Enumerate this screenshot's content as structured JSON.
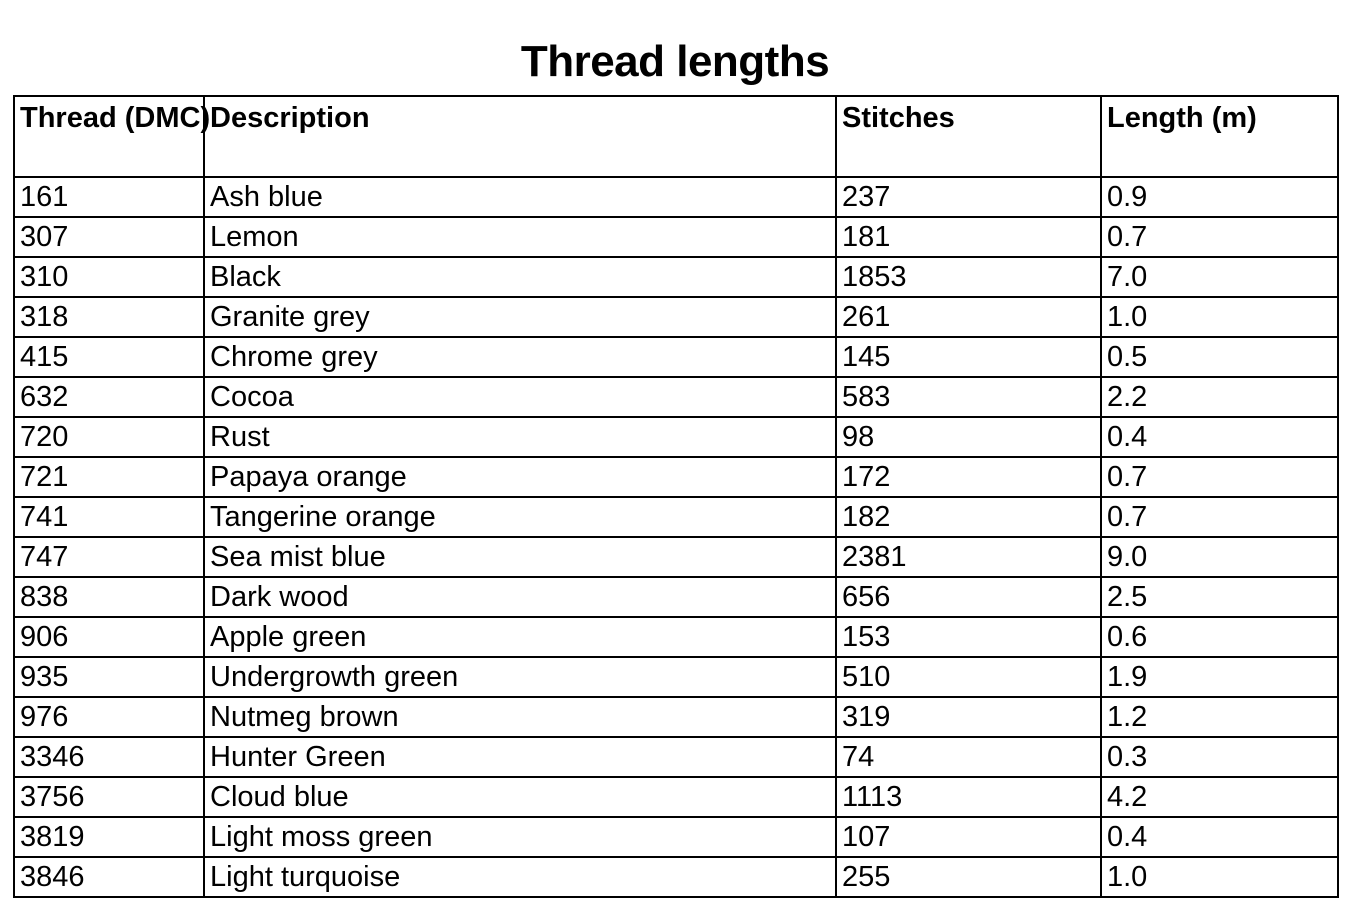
{
  "page": {
    "title": "Thread lengths"
  },
  "table": {
    "columns": [
      "Thread (DMC)",
      "Description",
      "Stitches",
      "Length (m)"
    ],
    "rows": [
      {
        "thread": "161",
        "description": "Ash blue",
        "stitches": "237",
        "length": "0.9"
      },
      {
        "thread": "307",
        "description": "Lemon",
        "stitches": "181",
        "length": "0.7"
      },
      {
        "thread": "310",
        "description": "Black",
        "stitches": "1853",
        "length": "7.0"
      },
      {
        "thread": "318",
        "description": "Granite grey",
        "stitches": "261",
        "length": "1.0"
      },
      {
        "thread": "415",
        "description": "Chrome grey",
        "stitches": "145",
        "length": "0.5"
      },
      {
        "thread": "632",
        "description": "Cocoa",
        "stitches": "583",
        "length": "2.2"
      },
      {
        "thread": "720",
        "description": "Rust",
        "stitches": "98",
        "length": "0.4"
      },
      {
        "thread": "721",
        "description": "Papaya orange",
        "stitches": "172",
        "length": "0.7"
      },
      {
        "thread": "741",
        "description": "Tangerine orange",
        "stitches": "182",
        "length": "0.7"
      },
      {
        "thread": "747",
        "description": "Sea mist blue",
        "stitches": "2381",
        "length": "9.0"
      },
      {
        "thread": "838",
        "description": "Dark wood",
        "stitches": "656",
        "length": "2.5"
      },
      {
        "thread": "906",
        "description": "Apple green",
        "stitches": "153",
        "length": "0.6"
      },
      {
        "thread": "935",
        "description": "Undergrowth green",
        "stitches": "510",
        "length": "1.9"
      },
      {
        "thread": "976",
        "description": "Nutmeg brown",
        "stitches": "319",
        "length": "1.2"
      },
      {
        "thread": "3346",
        "description": "Hunter Green",
        "stitches": "74",
        "length": "0.3"
      },
      {
        "thread": "3756",
        "description": "Cloud blue",
        "stitches": "1113",
        "length": "4.2"
      },
      {
        "thread": "3819",
        "description": "Light moss green",
        "stitches": "107",
        "length": "0.4"
      },
      {
        "thread": "3846",
        "description": "Light turquoise",
        "stitches": "255",
        "length": "1.0"
      }
    ]
  }
}
